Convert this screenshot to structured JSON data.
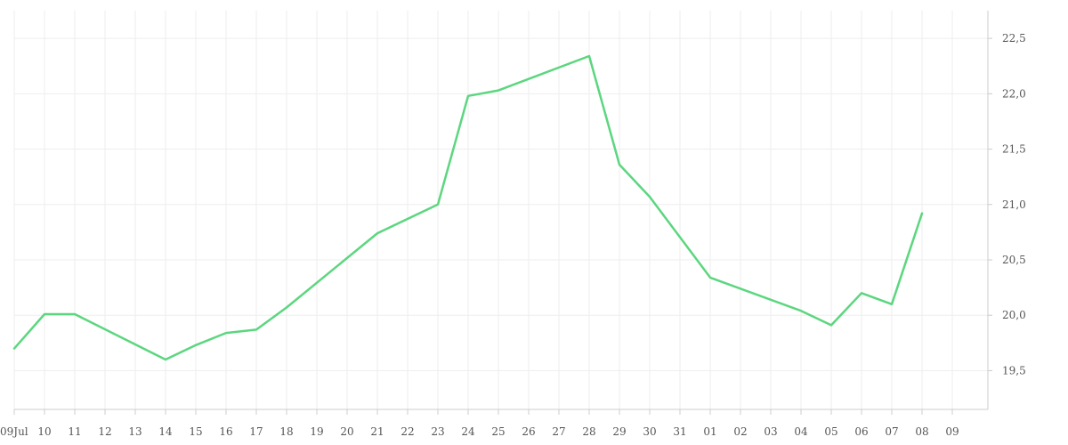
{
  "chart_data": {
    "type": "line",
    "title": "",
    "xlabel": "",
    "ylabel": "",
    "x_tick_labels": [
      "09Jul",
      "10",
      "11",
      "12",
      "13",
      "14",
      "15",
      "16",
      "17",
      "18",
      "19",
      "20",
      "21",
      "22",
      "23",
      "24",
      "25",
      "26",
      "27",
      "28",
      "29",
      "30",
      "31",
      "01",
      "02",
      "03",
      "04",
      "05",
      "06",
      "07",
      "08",
      "09"
    ],
    "y_ticks": [
      19.5,
      20.0,
      20.5,
      21.0,
      21.5,
      22.0,
      22.5
    ],
    "y_tick_labels": [
      "19,5",
      "20,0",
      "20,5",
      "21,0",
      "21,5",
      "22,0",
      "22,5"
    ],
    "ylim": [
      19.15,
      22.75
    ],
    "y_axis_position": "right",
    "grid": true,
    "legend": "none",
    "series": [
      {
        "color": "#5cd67f",
        "points": [
          {
            "x": "2023-07-09",
            "y": 19.7
          },
          {
            "x": "2023-07-10",
            "y": 20.01
          },
          {
            "x": "2023-07-11",
            "y": 20.01
          },
          {
            "x": "2023-07-14",
            "y": 19.6
          },
          {
            "x": "2023-07-15",
            "y": 19.73
          },
          {
            "x": "2023-07-16",
            "y": 19.84
          },
          {
            "x": "2023-07-17",
            "y": 19.87
          },
          {
            "x": "2023-07-18",
            "y": 20.07
          },
          {
            "x": "2023-07-21",
            "y": 20.74
          },
          {
            "x": "2023-07-23",
            "y": 21.0
          },
          {
            "x": "2023-07-24",
            "y": 21.98
          },
          {
            "x": "2023-07-25",
            "y": 22.03
          },
          {
            "x": "2023-07-28",
            "y": 22.34
          },
          {
            "x": "2023-07-29",
            "y": 21.36
          },
          {
            "x": "2023-07-30",
            "y": 21.07
          },
          {
            "x": "2023-08-01",
            "y": 20.34
          },
          {
            "x": "2023-08-04",
            "y": 20.04
          },
          {
            "x": "2023-08-05",
            "y": 19.91
          },
          {
            "x": "2023-08-06",
            "y": 20.2
          },
          {
            "x": "2023-08-07",
            "y": 20.1
          },
          {
            "x": "2023-08-08",
            "y": 20.92
          }
        ]
      }
    ]
  }
}
